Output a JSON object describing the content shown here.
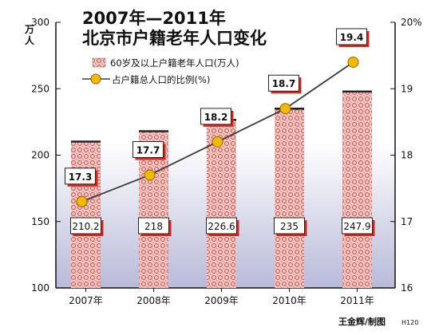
{
  "titles": {
    "line1": "2007年—2011年",
    "line2": "北京市户籍老年人口变化"
  },
  "legend": {
    "bar_label": "60岁及以上户籍老年人口(万人)",
    "line_label": "占户籍总人口的比例(%)"
  },
  "left_axis_unit": "万人",
  "credit": "王金辉/制图",
  "code": "H120",
  "colors": {
    "bar_fill": "#f1c8c4",
    "bar_pattern": "#c23a36",
    "bar_top": "#222222",
    "line": "#3a3a3a",
    "point": "#f5b800",
    "point_stroke": "#8a6a00",
    "label_shadow": "#d9261c",
    "bg_top": "#ffffff",
    "bg_bottom": "#b9bad9"
  },
  "chart_data": {
    "type": "bar",
    "categories": [
      "2007年",
      "2008年",
      "2009年",
      "2010年",
      "2011年"
    ],
    "series": [
      {
        "name": "60岁及以上户籍老年人口(万人)",
        "values": [
          210.2,
          218,
          226.6,
          235,
          247.9
        ],
        "axis": "left"
      },
      {
        "name": "占户籍总人口的比例(%)",
        "values": [
          17.3,
          17.7,
          18.2,
          18.7,
          19.4
        ],
        "axis": "right",
        "type": "line"
      }
    ],
    "value_labels": {
      "bars": [
        "210.2",
        "218",
        "226.6",
        "235",
        "247.9"
      ],
      "line": [
        "17.3",
        "17.7",
        "18.2",
        "18.7",
        "19.4"
      ]
    },
    "left_ylim": [
      100,
      300
    ],
    "left_ticks": [
      "300",
      "250",
      "200",
      "150",
      "100"
    ],
    "right_ylim": [
      16,
      20
    ],
    "right_ticks": [
      "20%",
      "19",
      "18",
      "17",
      "16"
    ]
  }
}
